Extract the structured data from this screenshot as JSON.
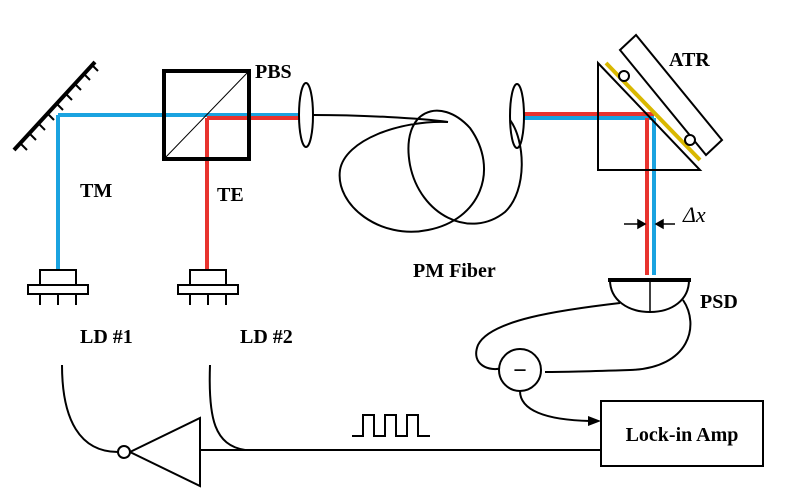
{
  "labels": {
    "pbs": "PBS",
    "atr": "ATR",
    "tm": "TM",
    "te": "TE",
    "pm_fiber": "PM Fiber",
    "delta_x": "Δx",
    "psd": "PSD",
    "ld1": "LD #1",
    "ld2": "LD #2",
    "lockin": "Lock-in Amp",
    "subtractor": "−"
  },
  "colors": {
    "tm_beam": "#1aa3e0",
    "te_beam": "#e8332e",
    "gold_film": "#d9b800"
  }
}
